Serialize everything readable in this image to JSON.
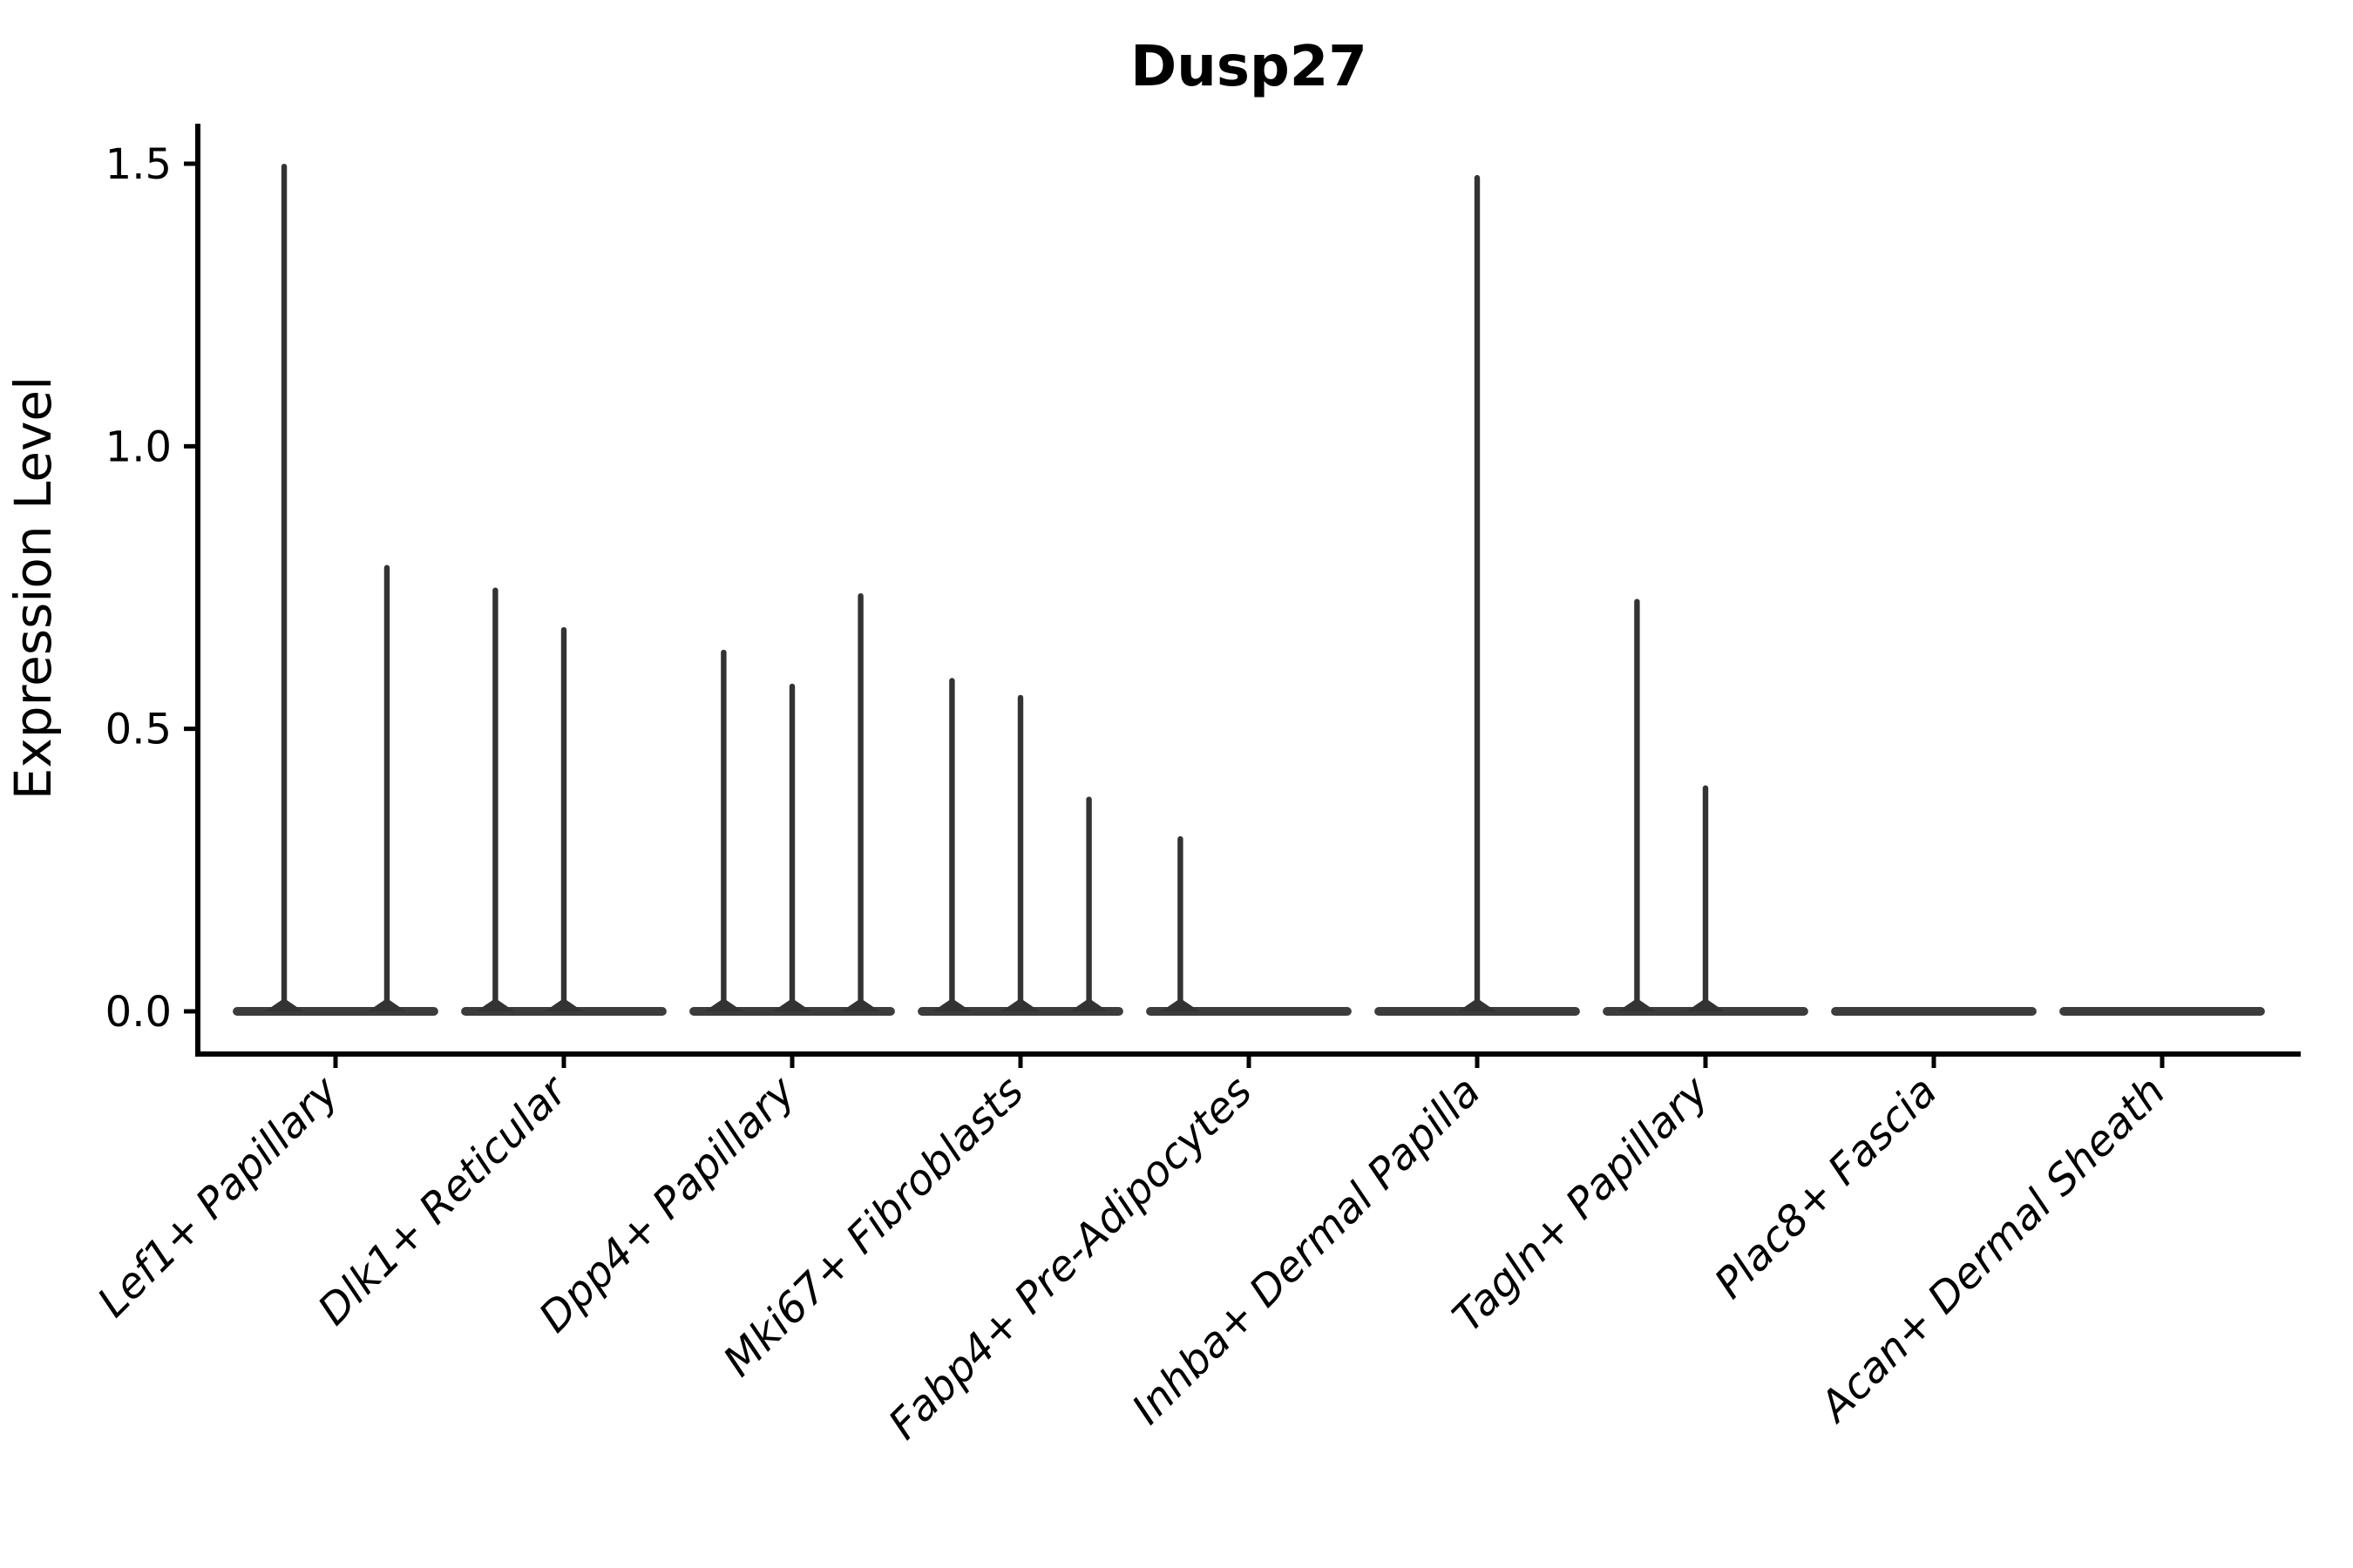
{
  "chart_data": {
    "type": "violin",
    "title": "Dusp27",
    "ylabel": "Expression Level",
    "xlabel": "",
    "yticks": [
      "0.0",
      "0.5",
      "1.0",
      "1.5"
    ],
    "ytick_values": [
      0.0,
      0.5,
      1.0,
      1.5
    ],
    "ylim": [
      -0.075,
      1.57
    ],
    "grid": "off",
    "legend": "none",
    "categories": [
      "Lef1+ Papillary",
      "Dlk1+ Reticular",
      "Dpp4+ Papillary",
      "Mki67+ Fibroblasts",
      "Fabp4+ Pre-Adipocytes",
      "Inhba+ Dermal Papilla",
      "Tagln+ Papillary",
      "Plac8+ Fascia",
      "Acan+ Dermal Sheath"
    ],
    "baseline_value": 0.0,
    "violin_width_frac": 0.9,
    "violins": [
      {
        "category": "Lef1+ Papillary",
        "spikes": [
          {
            "offset": -0.225,
            "peak": 1.5
          },
          {
            "offset": 0.225,
            "peak": 0.79
          }
        ]
      },
      {
        "category": "Dlk1+ Reticular",
        "spikes": [
          {
            "offset": -0.3,
            "peak": 0.75
          },
          {
            "offset": 0.0,
            "peak": 0.68
          }
        ]
      },
      {
        "category": "Dpp4+ Papillary",
        "spikes": [
          {
            "offset": -0.3,
            "peak": 0.64
          },
          {
            "offset": 0.0,
            "peak": 0.58
          },
          {
            "offset": 0.3,
            "peak": 0.74
          }
        ]
      },
      {
        "category": "Mki67+ Fibroblasts",
        "spikes": [
          {
            "offset": -0.3,
            "peak": 0.59
          },
          {
            "offset": 0.0,
            "peak": 0.56
          },
          {
            "offset": 0.3,
            "peak": 0.38
          }
        ]
      },
      {
        "category": "Fabp4+ Pre-Adipocytes",
        "spikes": [
          {
            "offset": -0.3,
            "peak": 0.31
          }
        ]
      },
      {
        "category": "Inhba+ Dermal Papilla",
        "spikes": [
          {
            "offset": 0.0,
            "peak": 1.48
          }
        ]
      },
      {
        "category": "Tagln+ Papillary",
        "spikes": [
          {
            "offset": -0.3,
            "peak": 0.73
          },
          {
            "offset": 0.0,
            "peak": 0.4
          }
        ]
      },
      {
        "category": "Plac8+ Fascia",
        "spikes": []
      },
      {
        "category": "Acan+ Dermal Sheath",
        "spikes": []
      }
    ],
    "colors": {
      "violin_stroke": "#333333",
      "violin_baseline": "#3c3c3c",
      "axis": "#000000",
      "text": "#000000",
      "background": "#ffffff"
    }
  }
}
